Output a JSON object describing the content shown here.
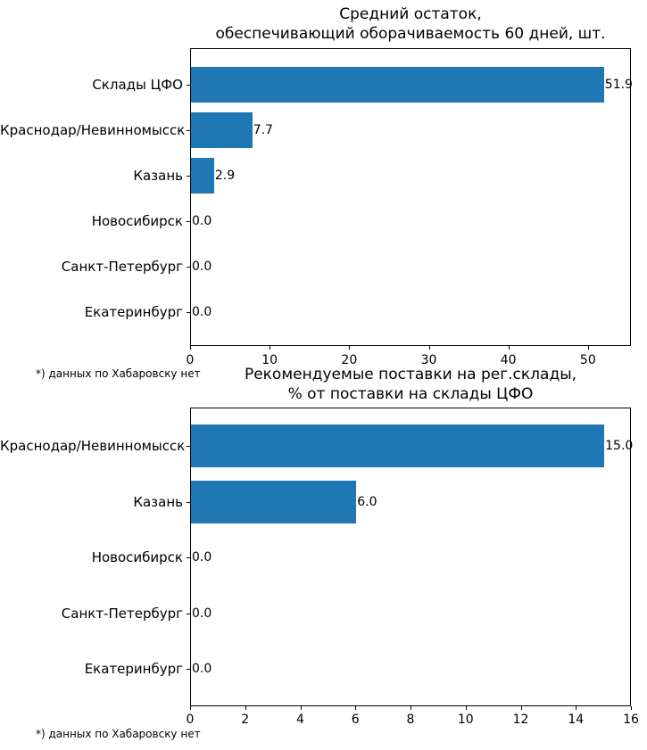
{
  "figure": {
    "background": "#ffffff",
    "text_color": "#000000",
    "frame_color": "#000000"
  },
  "chart_data": [
    {
      "type": "bar",
      "orientation": "horizontal",
      "title_lines": [
        "Средний остаток,",
        "обеспечивающий оборачиваемость 60 дней, шт."
      ],
      "categories": [
        "Склады ЦФО",
        "Краснодар/Невинномысск",
        "Казань",
        "Новосибирск",
        "Санкт-Петербург",
        "Екатеринбург"
      ],
      "values": [
        51.9,
        7.7,
        2.9,
        0.0,
        0.0,
        0.0
      ],
      "value_labels": [
        "51.9",
        "7.7",
        "2.9",
        "0.0",
        "0.0",
        "0.0"
      ],
      "xticks": [
        0,
        10,
        20,
        30,
        40,
        50
      ],
      "xtick_labels": [
        "0",
        "10",
        "20",
        "30",
        "40",
        "50"
      ],
      "xlim": [
        0,
        55.4
      ],
      "grid": false,
      "legend": "none",
      "bar_color": "#1f77b4",
      "footnote": "*) данных по Хабаровску нет"
    },
    {
      "type": "bar",
      "orientation": "horizontal",
      "title_lines": [
        "Рекомендуемые поставки на рег.склады,",
        "% от поставки на склады ЦФО"
      ],
      "categories": [
        "Краснодар/Невинномысск",
        "Казань",
        "Новосибирск",
        "Санкт-Петербург",
        "Екатеринбург"
      ],
      "values": [
        15.0,
        6.0,
        0.0,
        0.0,
        0.0
      ],
      "value_labels": [
        "15.0",
        "6.0",
        "0.0",
        "0.0",
        "0.0"
      ],
      "xticks": [
        0,
        2,
        4,
        6,
        8,
        10,
        12,
        14,
        16
      ],
      "xtick_labels": [
        "0",
        "2",
        "4",
        "6",
        "8",
        "10",
        "12",
        "14",
        "16"
      ],
      "xlim": [
        0,
        16
      ],
      "grid": false,
      "legend": "none",
      "bar_color": "#1f77b4",
      "footnote": "*) данных по Хабаровску нет"
    }
  ]
}
